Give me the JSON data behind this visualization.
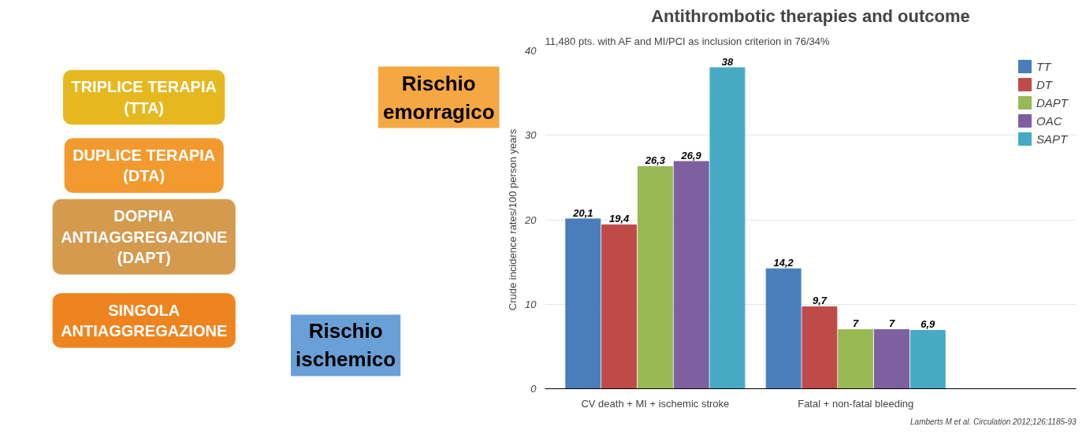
{
  "chart_data": {
    "type": "bar",
    "title": "Antithrombotic therapies and outcome",
    "subtitle": "11,480 pts. with AF and MI/PCI as inclusion criterion in 76/34%",
    "ylabel": "Crude incidence rates/100 person years",
    "categories": [
      "CV death + MI + ischemic stroke",
      "Fatal + non-fatal bleeding"
    ],
    "series": [
      {
        "name": "TT",
        "color": "#4a7ebb",
        "values": [
          20.1,
          14.2
        ],
        "value_labels": [
          "20,1",
          "14,2"
        ]
      },
      {
        "name": "DT",
        "color": "#be4b48",
        "values": [
          19.4,
          9.7
        ],
        "value_labels": [
          "19,4",
          "9,7"
        ]
      },
      {
        "name": "DAPT",
        "color": "#98b954",
        "values": [
          26.3,
          7
        ],
        "value_labels": [
          "26,3",
          "7"
        ]
      },
      {
        "name": "OAC",
        "color": "#7d60a0",
        "values": [
          26.9,
          7
        ],
        "value_labels": [
          "26,9",
          "7"
        ]
      },
      {
        "name": "SAPT",
        "color": "#46aac5",
        "values": [
          38,
          6.9
        ],
        "value_labels": [
          "38",
          "6,9"
        ]
      }
    ],
    "ylim": [
      0,
      40
    ],
    "yticks": [
      0,
      10,
      20,
      30,
      40
    ],
    "grid": "y",
    "legend": "top right",
    "annotations": [
      "TRIPLICE TERAPIA (TTA)",
      "DUPLICE TERAPIA (DTA)",
      "DOPPIA ANTIAGGREGAZIONE (DAPT)",
      "SINGOLA ANTIAGGREGAZIONE",
      "Rischio emorragico",
      "Rischio ischemico",
      "Lamberts M et al. Circulation 2012;126:1185-93"
    ]
  }
}
